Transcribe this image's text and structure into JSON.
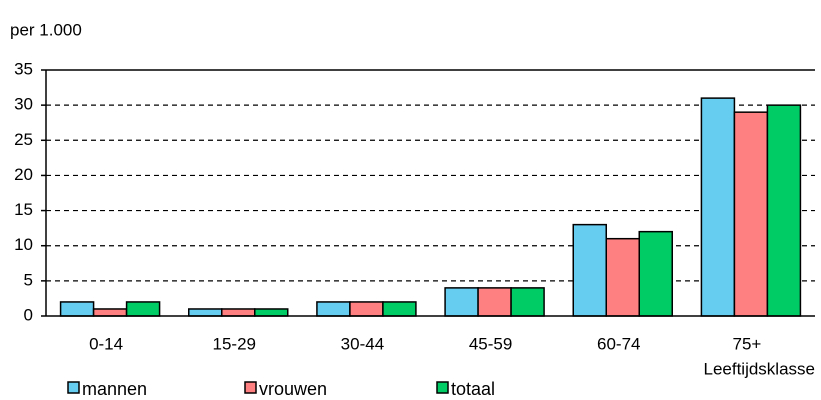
{
  "chart_data": {
    "type": "bar",
    "title": "per 1.000",
    "x_label": "Leeftijdsklasse",
    "categories": [
      "0-14",
      "15-29",
      "30-44",
      "45-59",
      "60-74",
      "75+"
    ],
    "series": [
      {
        "name": "mannen",
        "color": "#66ccf0",
        "values": [
          2,
          1,
          2,
          4,
          13,
          31
        ]
      },
      {
        "name": "vrouwen",
        "color": "#ff8080",
        "values": [
          1,
          1,
          2,
          4,
          11,
          29
        ]
      },
      {
        "name": "totaal",
        "color": "#00cc66",
        "values": [
          2,
          1,
          2,
          4,
          12,
          30
        ]
      }
    ],
    "ylim": [
      0,
      35
    ],
    "yticks": [
      0,
      5,
      10,
      15,
      20,
      25,
      30,
      35
    ],
    "grid": true,
    "legend": "bottom"
  }
}
